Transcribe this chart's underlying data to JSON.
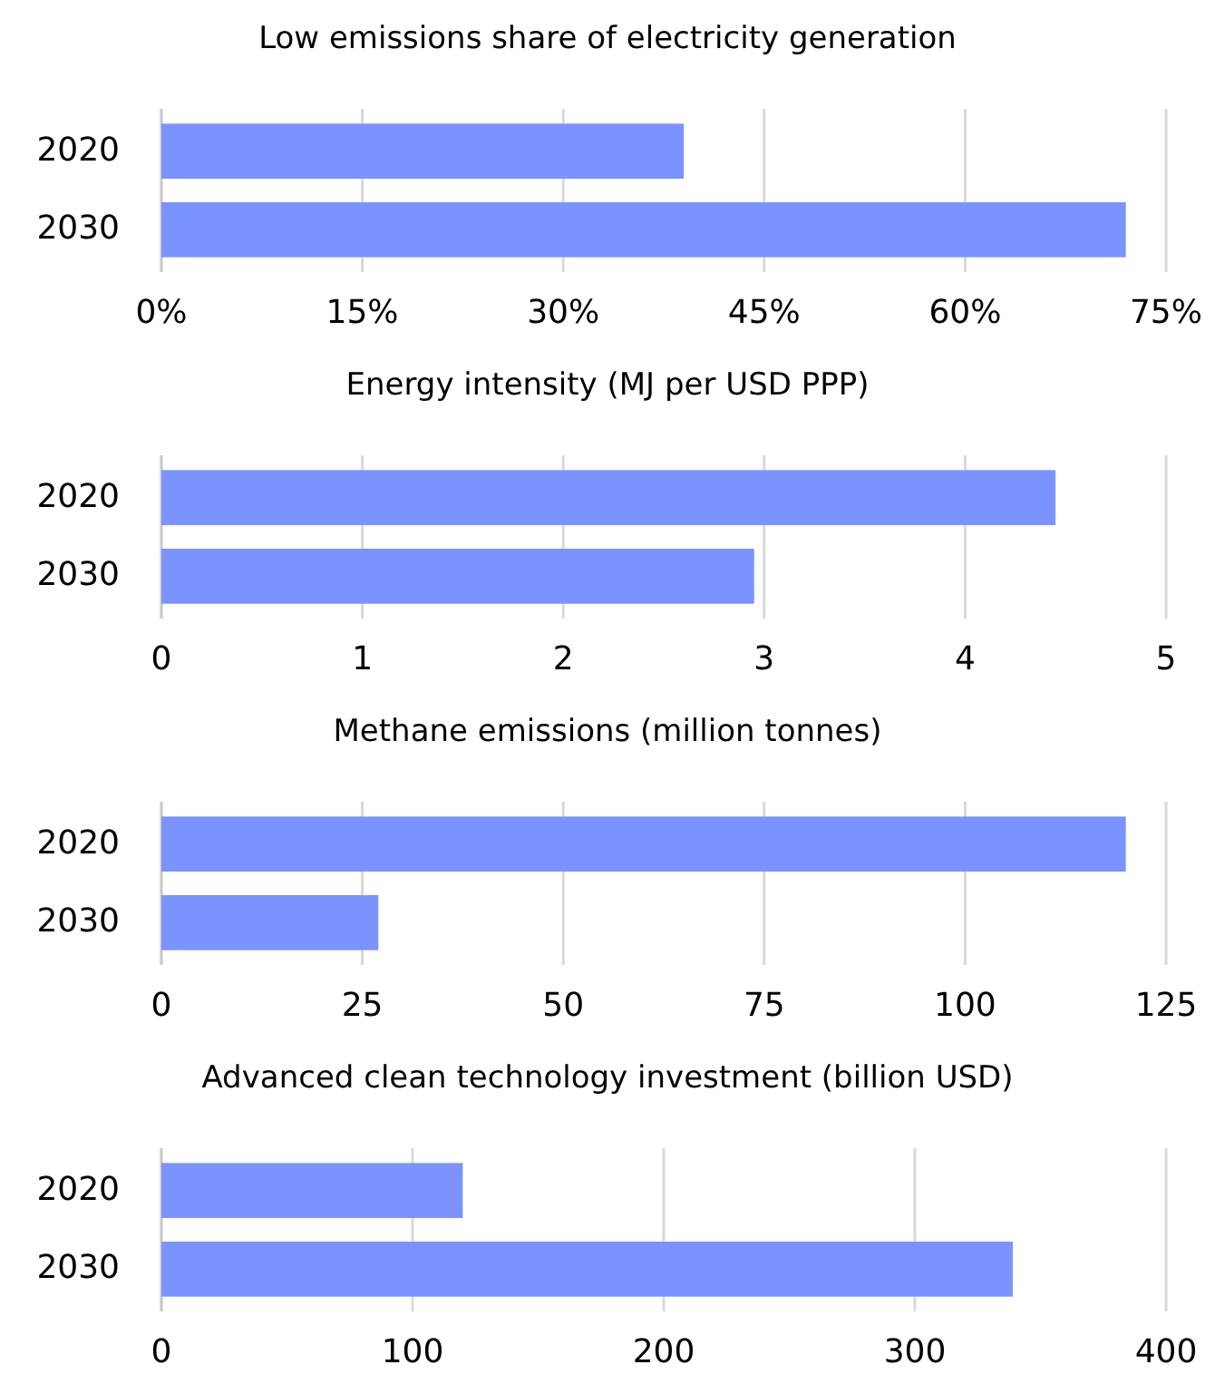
{
  "chart_data": [
    {
      "type": "bar",
      "orientation": "horizontal",
      "title": "Low emissions share of electricity generation",
      "categories": [
        "2020",
        "2030"
      ],
      "values": [
        39,
        72
      ],
      "color": "#7b93ff",
      "xlim": [
        0,
        75
      ],
      "xticks": [
        {
          "value": 0,
          "label": "0%"
        },
        {
          "value": 15,
          "label": "15%"
        },
        {
          "value": 30,
          "label": "30%"
        },
        {
          "value": 45,
          "label": "45%"
        },
        {
          "value": 60,
          "label": "60%"
        },
        {
          "value": 75,
          "label": "75%"
        }
      ],
      "grid": "x"
    },
    {
      "type": "bar",
      "orientation": "horizontal",
      "title": "Energy intensity (MJ per USD PPP)",
      "categories": [
        "2020",
        "2030"
      ],
      "values": [
        4.45,
        2.95
      ],
      "color": "#7b93ff",
      "xlim": [
        0,
        5
      ],
      "xticks": [
        0,
        1,
        2,
        3,
        4,
        5
      ],
      "grid": "x"
    },
    {
      "type": "bar",
      "orientation": "horizontal",
      "title": "Methane emissions (million tonnes)",
      "categories": [
        "2020",
        "2030"
      ],
      "values": [
        120,
        27
      ],
      "color": "#7b93ff",
      "xlim": [
        0,
        125
      ],
      "xticks": [
        0,
        25,
        50,
        75,
        100,
        125
      ],
      "grid": "x"
    },
    {
      "type": "bar",
      "orientation": "horizontal",
      "title": "Advanced clean technology investment (billion USD)",
      "categories": [
        "2020",
        "2030"
      ],
      "values": [
        120,
        339
      ],
      "color": "#7b93ff",
      "xlim": [
        0,
        400
      ],
      "xticks": [
        0,
        100,
        200,
        300,
        400
      ],
      "grid": "x"
    }
  ]
}
